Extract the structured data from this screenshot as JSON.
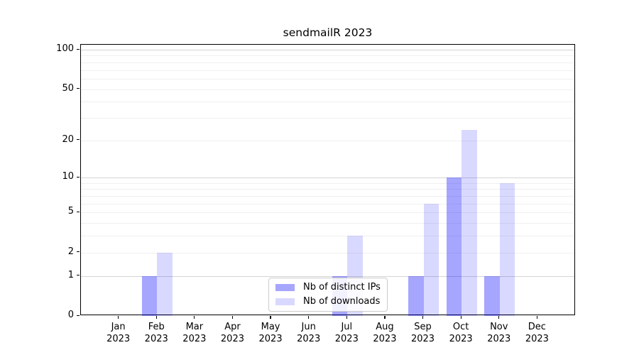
{
  "chart_data": {
    "type": "bar",
    "title": "sendmailR 2023",
    "xlabel": "",
    "ylabel": "",
    "y_scale": "log1p",
    "ylim": [
      0,
      108
    ],
    "y_ticks": [
      0,
      1,
      2,
      5,
      10,
      20,
      50,
      100
    ],
    "gridlines": {
      "major": [
        1,
        10,
        100
      ],
      "minor": [
        2,
        3,
        4,
        5,
        6,
        7,
        8,
        9,
        20,
        30,
        40,
        50,
        60,
        70,
        80,
        90
      ]
    },
    "categories": [
      "Jan",
      "Feb",
      "Mar",
      "Apr",
      "May",
      "Jun",
      "Jul",
      "Aug",
      "Sep",
      "Oct",
      "Nov",
      "Dec"
    ],
    "x_sublabel": "2023",
    "series": [
      {
        "name": "Nb of distinct IPs",
        "color_hex": "#a6a6ff",
        "color_rgba": "rgba(0,0,255,0.35)",
        "values": [
          0,
          1,
          0,
          0,
          0,
          0,
          1,
          0,
          1,
          10,
          1,
          0
        ]
      },
      {
        "name": "Nb of downloads",
        "color_hex": "#d9d9ff",
        "color_rgba": "rgba(0,0,255,0.15)",
        "values": [
          0,
          2,
          0,
          0,
          0,
          0,
          3,
          0,
          6,
          24,
          9,
          0
        ]
      }
    ],
    "legend_position": "bottom-center",
    "grid": true
  }
}
